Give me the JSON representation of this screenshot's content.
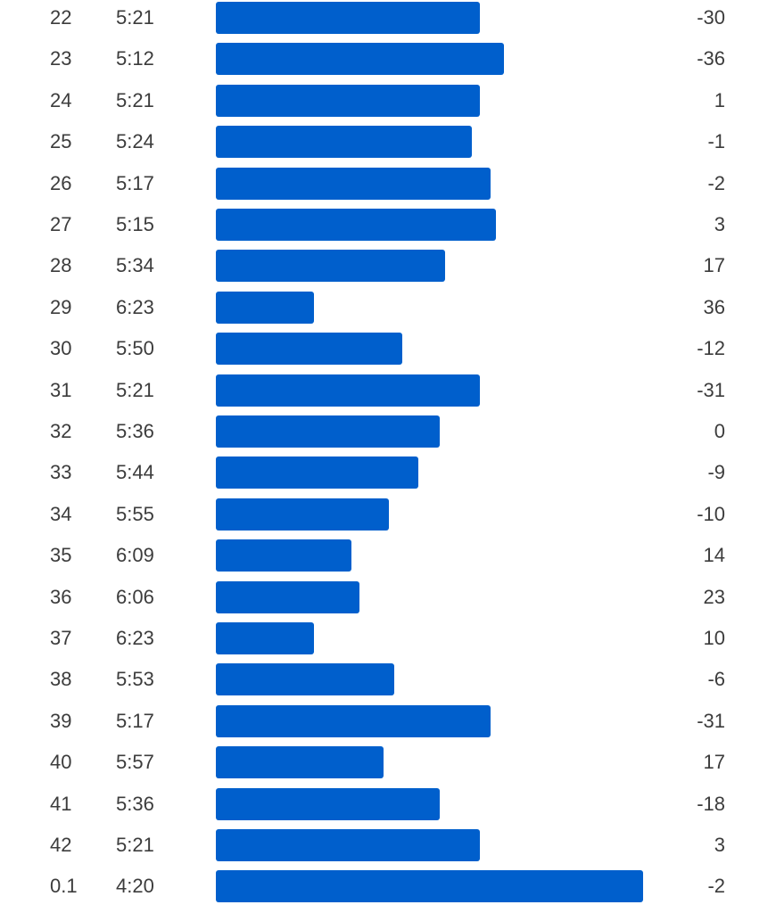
{
  "colors": {
    "bar": "#005fcc",
    "text": "#3c3c3c",
    "background": "#ffffff"
  },
  "splits": [
    {
      "km": "22",
      "pace": "5:21",
      "elev": "-30"
    },
    {
      "km": "23",
      "pace": "5:12",
      "elev": "-36"
    },
    {
      "km": "24",
      "pace": "5:21",
      "elev": "1"
    },
    {
      "km": "25",
      "pace": "5:24",
      "elev": "-1"
    },
    {
      "km": "26",
      "pace": "5:17",
      "elev": "-2"
    },
    {
      "km": "27",
      "pace": "5:15",
      "elev": "3"
    },
    {
      "km": "28",
      "pace": "5:34",
      "elev": "17"
    },
    {
      "km": "29",
      "pace": "6:23",
      "elev": "36"
    },
    {
      "km": "30",
      "pace": "5:50",
      "elev": "-12"
    },
    {
      "km": "31",
      "pace": "5:21",
      "elev": "-31"
    },
    {
      "km": "32",
      "pace": "5:36",
      "elev": "0"
    },
    {
      "km": "33",
      "pace": "5:44",
      "elev": "-9"
    },
    {
      "km": "34",
      "pace": "5:55",
      "elev": "-10"
    },
    {
      "km": "35",
      "pace": "6:09",
      "elev": "14"
    },
    {
      "km": "36",
      "pace": "6:06",
      "elev": "23"
    },
    {
      "km": "37",
      "pace": "6:23",
      "elev": "10"
    },
    {
      "km": "38",
      "pace": "5:53",
      "elev": "-6"
    },
    {
      "km": "39",
      "pace": "5:17",
      "elev": "-31"
    },
    {
      "km": "40",
      "pace": "5:57",
      "elev": "17"
    },
    {
      "km": "41",
      "pace": "5:36",
      "elev": "-18"
    },
    {
      "km": "42",
      "pace": "5:21",
      "elev": "3"
    },
    {
      "km": "0.1",
      "pace": "4:20",
      "elev": "-2"
    }
  ]
}
